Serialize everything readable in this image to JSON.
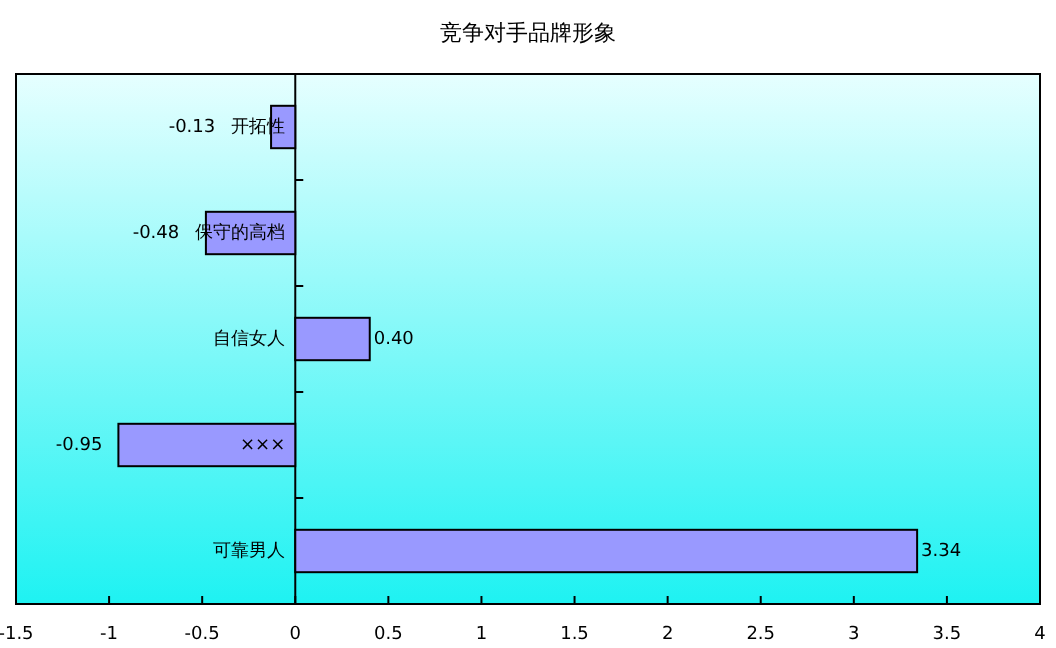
{
  "chart_data": {
    "type": "bar",
    "orientation": "horizontal",
    "title": "竞争对手品牌形象",
    "categories": [
      "开拓性",
      "保守的高档",
      "自信女人",
      "×××",
      "可靠男人"
    ],
    "values": [
      -0.13,
      -0.48,
      0.4,
      -0.95,
      3.34
    ],
    "value_labels": [
      "-0.13",
      "-0.48",
      "0.40",
      "-0.95",
      "3.34"
    ],
    "color": "#9999ff",
    "xlim": [
      -1.5,
      4
    ],
    "xticks": [
      -1.5,
      -1,
      -0.5,
      0,
      0.5,
      1,
      1.5,
      2,
      2.5,
      3,
      3.5,
      4
    ]
  }
}
